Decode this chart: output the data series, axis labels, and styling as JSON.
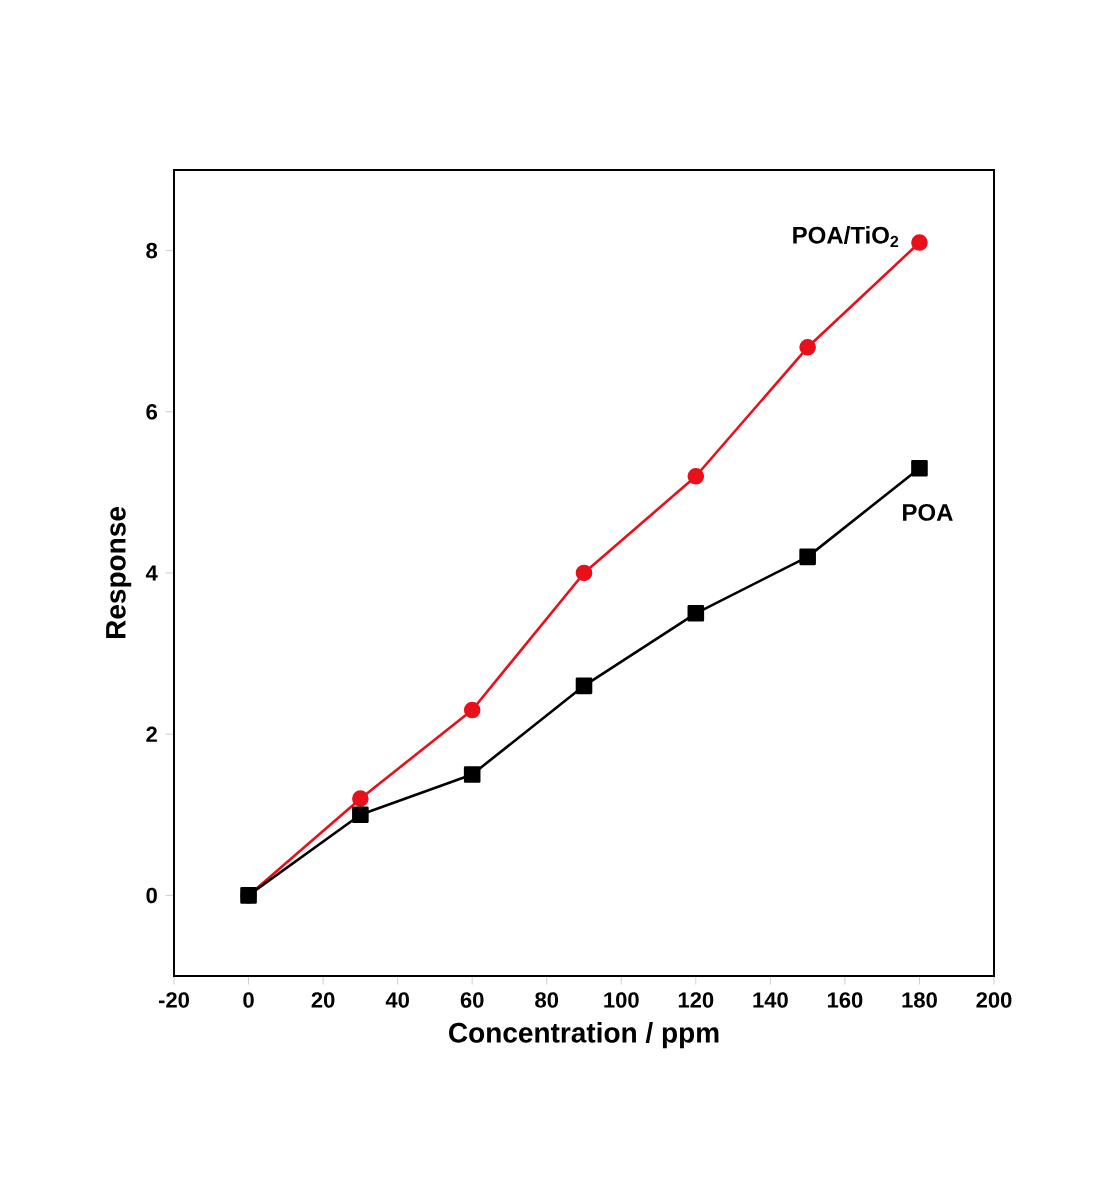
{
  "chart_data": {
    "type": "line",
    "xlabel": "Concentration / ppm",
    "ylabel": "Response",
    "x": [
      0,
      30,
      60,
      90,
      120,
      150,
      180
    ],
    "series": [
      {
        "name": "POA/TiO$_{2}$",
        "color": "#e8101a",
        "marker": "circle",
        "values": [
          0,
          1.2,
          2.3,
          4.0,
          5.2,
          6.8,
          8.1
        ]
      },
      {
        "name": "POA",
        "color": "#000000",
        "marker": "square",
        "values": [
          0,
          1.0,
          1.5,
          2.6,
          3.5,
          4.2,
          5.3
        ]
      }
    ],
    "xlim": [
      -20,
      200
    ],
    "ylim": [
      -1,
      9
    ],
    "xticks": [
      -20,
      0,
      20,
      40,
      60,
      80,
      100,
      120,
      140,
      160,
      180,
      200
    ],
    "yticks": [
      0,
      2,
      4,
      6,
      8
    ],
    "legend": false,
    "grid": false,
    "line_style": "solid"
  }
}
